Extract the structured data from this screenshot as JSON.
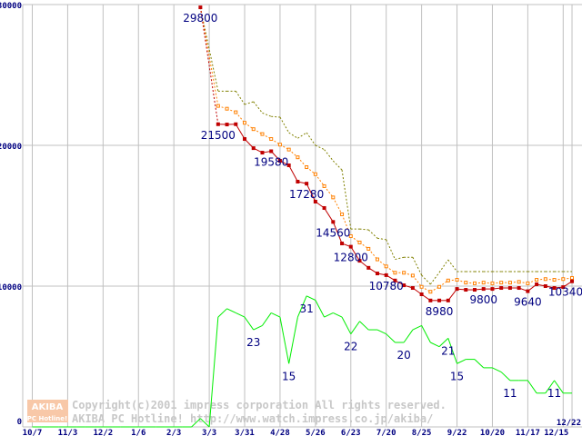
{
  "chart_data": {
    "type": "line",
    "title": "",
    "xlabel": "",
    "ylabel": "",
    "ylim": [
      0,
      30000
    ],
    "grid": true,
    "y_ticks": [
      "0",
      "10000",
      "20000",
      "30000"
    ],
    "y_tick_values": [
      0,
      10000,
      20000,
      30000
    ],
    "x_ticks": [
      "10/7",
      "11/3",
      "12/2",
      "1/6",
      "2/3",
      "3/3",
      "3/31",
      "4/28",
      "5/26",
      "6/23",
      "7/20",
      "8/25",
      "9/22",
      "10/20",
      "11/17",
      "12/15",
      "12/22"
    ],
    "x_tick_slots": [
      0,
      4,
      8,
      12,
      16,
      20,
      24,
      28,
      32,
      36,
      40,
      44,
      48,
      52,
      56,
      60,
      61
    ],
    "slot_count": 62,
    "series": [
      {
        "name": "max_price",
        "color": "#808000",
        "start_slot": 19,
        "values": [
          29800,
          null,
          23850,
          23850,
          23850,
          22900,
          23100,
          22300,
          22050,
          22000,
          20900,
          20500,
          20900,
          20000,
          19700,
          18900,
          18250,
          14060,
          14060,
          14000,
          13400,
          13300,
          11900,
          12050,
          12050,
          10780,
          10130,
          10970,
          11870,
          11030,
          11030,
          11030,
          11030,
          11030,
          11030,
          11030,
          11030,
          11030,
          11030,
          11030,
          11030,
          11030,
          11030
        ]
      },
      {
        "name": "avg_price",
        "color": "#ff8000",
        "start_slot": 19,
        "values": [
          29800,
          null,
          22800,
          22600,
          22350,
          21600,
          21150,
          20800,
          20450,
          20050,
          19700,
          19150,
          18450,
          17950,
          17100,
          16300,
          15100,
          13550,
          13100,
          12650,
          11900,
          11400,
          10950,
          10950,
          10750,
          9950,
          9600,
          9950,
          10400,
          10450,
          10250,
          10200,
          10250,
          10200,
          10250,
          10250,
          10300,
          10200,
          10450,
          10500,
          10450,
          10500,
          10580
        ]
      },
      {
        "name": "min_price",
        "color": "#c00000",
        "start_slot": 19,
        "values": [
          29800,
          null,
          21500,
          21480,
          21500,
          20450,
          19800,
          19480,
          19580,
          18900,
          18580,
          17420,
          17280,
          16000,
          15550,
          14560,
          13030,
          12800,
          11800,
          11300,
          10900,
          10780,
          10400,
          10060,
          9870,
          9420,
          8980,
          8980,
          8980,
          9800,
          9740,
          9740,
          9800,
          9800,
          9870,
          9870,
          9870,
          9640,
          10130,
          10000,
          9870,
          9930,
          10340
        ]
      },
      {
        "name": "shop_count",
        "color": "#00ee00",
        "start_slot": 0,
        "values": [
          0,
          0,
          0,
          0,
          0,
          0,
          0,
          0,
          0,
          0,
          0,
          0,
          0,
          0,
          0,
          0,
          0,
          0,
          0,
          2,
          0,
          26,
          28,
          27,
          26,
          23,
          24,
          27,
          26,
          15,
          26,
          31,
          30,
          26,
          27,
          26,
          22,
          25,
          23,
          23,
          22,
          20,
          20,
          23,
          24,
          20,
          19,
          21,
          15,
          16,
          16,
          14,
          14,
          13,
          11,
          11,
          11,
          8,
          8,
          11,
          8,
          8
        ]
      }
    ],
    "annotations": [
      {
        "series": "min_price",
        "slot": 19,
        "text": "29800"
      },
      {
        "series": "min_price",
        "slot": 21,
        "text": "21500"
      },
      {
        "series": "min_price",
        "slot": 27,
        "text": "19580"
      },
      {
        "series": "min_price",
        "slot": 31,
        "text": "17280"
      },
      {
        "series": "min_price",
        "slot": 34,
        "text": "14560"
      },
      {
        "series": "min_price",
        "slot": 36,
        "text": "12800"
      },
      {
        "series": "min_price",
        "slot": 40,
        "text": "10780"
      },
      {
        "series": "min_price",
        "slot": 46,
        "text": "8980"
      },
      {
        "series": "min_price",
        "slot": 51,
        "text": "9800"
      },
      {
        "series": "min_price",
        "slot": 56,
        "text": "9640"
      },
      {
        "series": "min_price",
        "slot": 61,
        "text": "10340"
      },
      {
        "series": "shop_count",
        "slot": 25,
        "text": "23"
      },
      {
        "series": "shop_count",
        "slot": 29,
        "text": "15"
      },
      {
        "series": "shop_count",
        "slot": 31,
        "text": "31"
      },
      {
        "series": "shop_count",
        "slot": 36,
        "text": "22"
      },
      {
        "series": "shop_count",
        "slot": 42,
        "text": "20"
      },
      {
        "series": "shop_count",
        "slot": 47,
        "text": "21"
      },
      {
        "series": "shop_count",
        "slot": 48,
        "text": "15"
      },
      {
        "series": "shop_count",
        "slot": 54,
        "text": "11"
      },
      {
        "series": "shop_count",
        "slot": 59,
        "text": "11"
      }
    ]
  },
  "watermark": {
    "logo_top": "AKIBA",
    "logo_bottom": "PC Hotline!",
    "copyright": "Copyright(c)2001 impress corporation All rights reserved.",
    "site": "AKIBA PC Hotline!  http://www.watch.impress.co.jp/akiba/"
  }
}
